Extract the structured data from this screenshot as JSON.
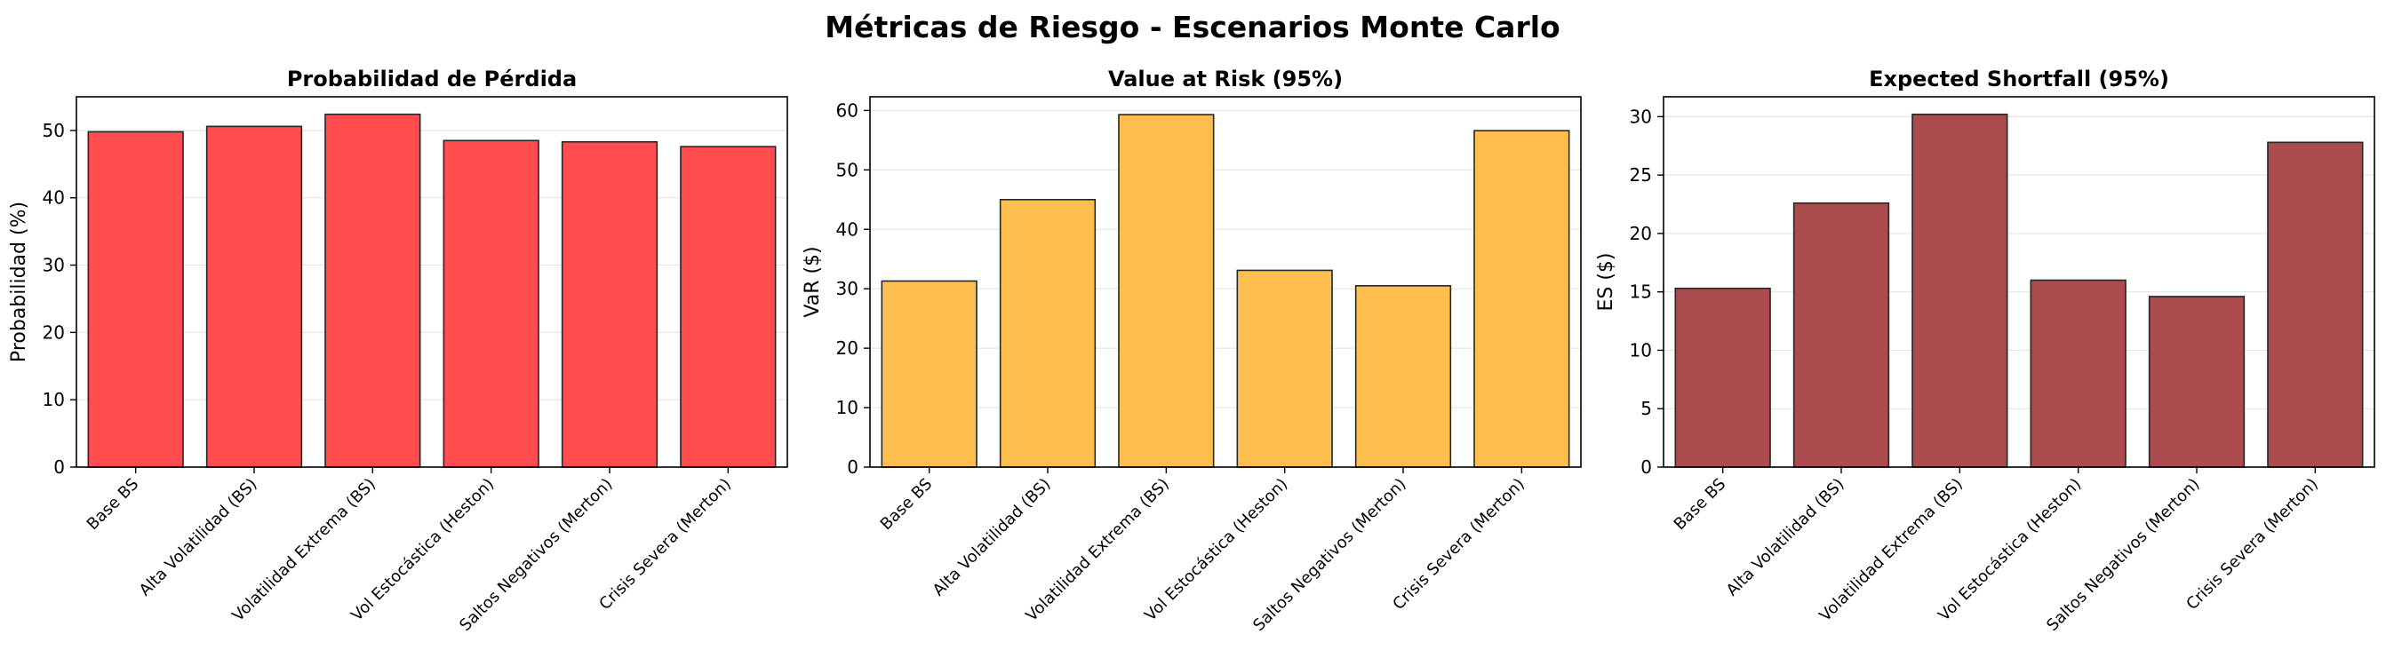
{
  "figure": {
    "title": "Métricas de Riesgo - Escenarios Monte Carlo"
  },
  "chart_data": [
    {
      "type": "bar",
      "title": "Probabilidad de Pérdida",
      "xlabel": "",
      "ylabel": "Probabilidad (%)",
      "categories": [
        "Base BS",
        "Alta Volatilidad (BS)",
        "Volatilidad Extrema (BS)",
        "Vol Estocástica (Heston)",
        "Saltos Negativos (Merton)",
        "Crisis Severa (Merton)"
      ],
      "values": [
        49.8,
        50.6,
        52.4,
        48.5,
        48.3,
        47.6
      ],
      "ylim": [
        0,
        55
      ],
      "yticks": [
        0,
        10,
        20,
        30,
        40,
        50
      ],
      "grid": "y",
      "color": "#ff4c4f"
    },
    {
      "type": "bar",
      "title": "Value at Risk (95%)",
      "xlabel": "",
      "ylabel": "VaR ($)",
      "categories": [
        "Base BS",
        "Alta Volatilidad (BS)",
        "Volatilidad Extrema (BS)",
        "Vol Estocástica (Heston)",
        "Saltos Negativos (Merton)",
        "Crisis Severa (Merton)"
      ],
      "values": [
        31.3,
        45.0,
        59.3,
        33.1,
        30.5,
        56.6
      ],
      "ylim": [
        0,
        62.3
      ],
      "yticks": [
        0,
        10,
        20,
        30,
        40,
        50,
        60
      ],
      "grid": "y",
      "color": "#ffbf4f"
    },
    {
      "type": "bar",
      "title": "Expected Shortfall (95%)",
      "xlabel": "",
      "ylabel": "ES ($)",
      "categories": [
        "Base BS",
        "Alta Volatilidad (BS)",
        "Volatilidad Extrema (BS)",
        "Vol Estocástica (Heston)",
        "Saltos Negativos (Merton)",
        "Crisis Severa (Merton)"
      ],
      "values": [
        15.3,
        22.6,
        30.2,
        16.0,
        14.6,
        27.8
      ],
      "ylim": [
        0,
        31.7
      ],
      "yticks": [
        0,
        5,
        10,
        15,
        20,
        25,
        30
      ],
      "grid": "y",
      "color": "#ab4b4d"
    }
  ]
}
